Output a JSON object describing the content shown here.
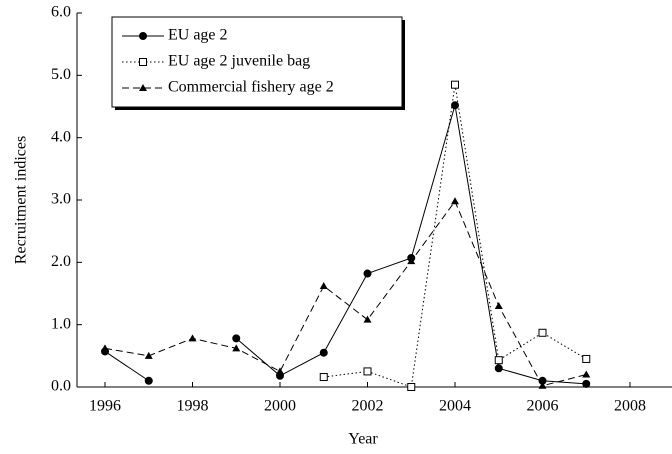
{
  "chart_data": {
    "type": "line",
    "x_label": "Year",
    "y_label": "Recruitment indices",
    "x": [
      1996,
      1997,
      1998,
      1999,
      2000,
      2001,
      2002,
      2003,
      2004,
      2005,
      2006,
      2007
    ],
    "series": [
      {
        "name": "EU age 2",
        "color": "#000000",
        "dash": "solid",
        "marker": "filled-circle",
        "values": [
          0.57,
          0.1,
          null,
          0.78,
          0.18,
          0.55,
          1.82,
          2.07,
          4.52,
          0.3,
          0.1,
          0.05
        ]
      },
      {
        "name": "EU age 2  juvenile bag",
        "color": "#000000",
        "dash": "dotted",
        "marker": "open-square",
        "values": [
          null,
          null,
          null,
          null,
          null,
          0.16,
          0.25,
          0.0,
          4.85,
          0.43,
          0.87,
          0.45
        ]
      },
      {
        "name": "Commercial fishery age 2",
        "color": "#000000",
        "dash": "dashed",
        "marker": "filled-triangle",
        "values": [
          0.62,
          0.5,
          0.78,
          0.62,
          0.25,
          1.62,
          1.08,
          2.02,
          2.98,
          1.3,
          0.02,
          0.2
        ]
      }
    ],
    "xlim": [
      1995.36,
      2008.96
    ],
    "xticks": [
      1996,
      1998,
      2000,
      2002,
      2004,
      2006,
      2008
    ],
    "ylim": [
      0,
      6
    ],
    "yticks": [
      {
        "value": 0,
        "label": "0.0"
      },
      {
        "value": 1,
        "label": "1.0"
      },
      {
        "value": 2,
        "label": "2.0"
      },
      {
        "value": 3,
        "label": "3.0"
      },
      {
        "value": 4,
        "label": "4.0"
      },
      {
        "value": 5,
        "label": "5.0"
      },
      {
        "value": 6,
        "label": "6.0"
      }
    ],
    "legend": "upper-left",
    "grid": false
  }
}
